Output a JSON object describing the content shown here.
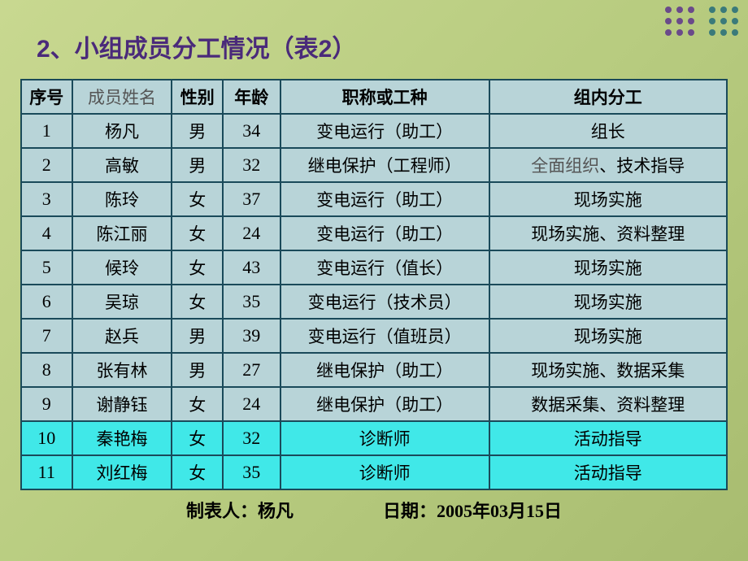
{
  "title": {
    "text": "2、小组成员分工情况（表2）",
    "color": "#4a2a7a"
  },
  "decoration": {
    "purple": "#6a4a8a",
    "teal": "#3a7a7a"
  },
  "table": {
    "headers": {
      "serial": "序号",
      "name": "成员姓名",
      "gender": "性别",
      "age": "年龄",
      "title_job": "职称或工种",
      "role": "组内分工"
    },
    "rows": [
      {
        "n": "1",
        "name": "杨凡",
        "gender": "男",
        "age": "34",
        "job": "变电运行（助工）",
        "role": "组长",
        "hl": false
      },
      {
        "n": "2",
        "name": "高敏",
        "gender": "男",
        "age": "32",
        "job": "继电保护（工程师）",
        "role_prefix": "全面组织",
        "role_suffix": "、技术指导",
        "hl": false,
        "split": true
      },
      {
        "n": "3",
        "name": "陈玲",
        "gender": "女",
        "age": "37",
        "job": "变电运行（助工）",
        "role": "现场实施",
        "hl": false
      },
      {
        "n": "4",
        "name": "陈江丽",
        "gender": "女",
        "age": "24",
        "job": "变电运行（助工）",
        "role": "现场实施、资料整理",
        "hl": false
      },
      {
        "n": "5",
        "name": "候玲",
        "gender": "女",
        "age": "43",
        "job": "变电运行（值长）",
        "role": "现场实施",
        "hl": false
      },
      {
        "n": "6",
        "name": "吴琼",
        "gender": "女",
        "age": "35",
        "job": "变电运行（技术员）",
        "role": "现场实施",
        "hl": false
      },
      {
        "n": "7",
        "name": "赵兵",
        "gender": "男",
        "age": "39",
        "job": "变电运行（值班员）",
        "role": "现场实施",
        "hl": false
      },
      {
        "n": "8",
        "name": "张有林",
        "gender": "男",
        "age": "27",
        "job": "继电保护（助工）",
        "role": "现场实施、数据采集",
        "hl": false
      },
      {
        "n": "9",
        "name": "谢静钰",
        "gender": "女",
        "age": "24",
        "job": "继电保护（助工）",
        "role": "数据采集、资料整理",
        "hl": false
      },
      {
        "n": "10",
        "name": "秦艳梅",
        "gender": "女",
        "age": "32",
        "job": "诊断师",
        "role": "活动指导",
        "hl": true
      },
      {
        "n": "11",
        "name": "刘红梅",
        "gender": "女",
        "age": "35",
        "job": "诊断师",
        "role": "活动指导",
        "hl": true
      }
    ]
  },
  "footer": {
    "creator_label": "制表人：",
    "creator": "杨凡",
    "date_label": "日期：",
    "date_y": "2005",
    "date_m": "03",
    "date_d": "15",
    "year_char": "年",
    "month_char": "月",
    "day_char": "日"
  },
  "colors": {
    "header_bg": "#b8d4d8",
    "row_bg": "#b8d4d8",
    "highlight_bg": "#40e8e8",
    "border": "#1a4a5a"
  }
}
